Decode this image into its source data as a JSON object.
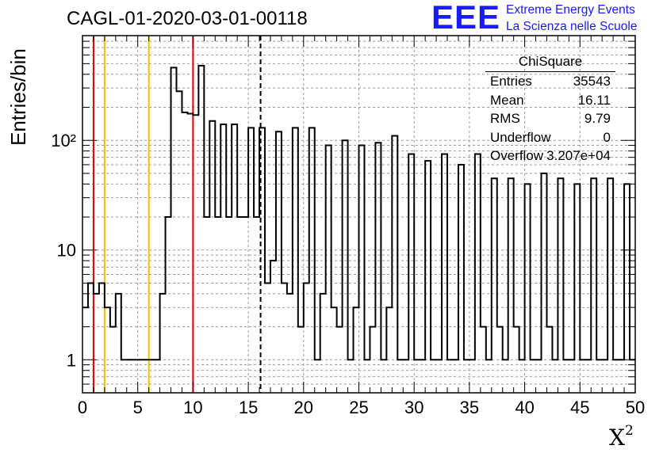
{
  "header": {
    "title": "CAGL-01-2020-03-01-00118",
    "logo_text": "EEE",
    "logo_line1": "Extreme Energy Events",
    "logo_line2": "La Scienza nelle Scuole"
  },
  "stats_box": {
    "title": "ChiSquare",
    "rows": [
      {
        "key": "Entries",
        "value": "35543"
      },
      {
        "key": "Mean",
        "value": "16.11"
      },
      {
        "key": "RMS",
        "value": "9.79"
      },
      {
        "key": "Underflow",
        "value": "0"
      },
      {
        "key": "Overflow",
        "value": "3.207e+04"
      }
    ]
  },
  "colors": {
    "red_line": "#dd0000",
    "yellow_line": "#f0c000",
    "histogram": "#000000",
    "logo": "#1a1aff"
  },
  "chart_data": {
    "type": "bar",
    "histogram": "step",
    "ylabel": "Entries/bin",
    "xlabel": "X²",
    "xlim": [
      0,
      50
    ],
    "ylim": [
      0.5,
      900
    ],
    "yscale": "log",
    "grid": true,
    "bin_width": 0.5,
    "x_ticks": [
      "0",
      "5",
      "10",
      "15",
      "20",
      "25",
      "30",
      "35",
      "40",
      "45",
      "50"
    ],
    "y_ticks": [
      {
        "value": 1,
        "label": "1"
      },
      {
        "value": 10,
        "label": "10"
      },
      {
        "value": 100,
        "label": "10²"
      }
    ],
    "vertical_lines": [
      {
        "x": 1,
        "color": "red",
        "style": "solid"
      },
      {
        "x": 2,
        "color": "yellow",
        "style": "solid"
      },
      {
        "x": 6,
        "color": "yellow",
        "style": "solid"
      },
      {
        "x": 10,
        "color": "red",
        "style": "solid"
      },
      {
        "x": 16.11,
        "color": "black",
        "style": "dashed"
      }
    ],
    "values": [
      3,
      5,
      4,
      5,
      3,
      2,
      4,
      1,
      1,
      1,
      1,
      1,
      1,
      1,
      4,
      20,
      460,
      280,
      180,
      175,
      170,
      480,
      20,
      150,
      20,
      140,
      20,
      140,
      20,
      20,
      130,
      20,
      130,
      5,
      8,
      120,
      5,
      4,
      130,
      2,
      5,
      130,
      1,
      4,
      90,
      3,
      2,
      100,
      1,
      3,
      90,
      1,
      2,
      95,
      1,
      3,
      110,
      1,
      1,
      75,
      1,
      1,
      65,
      1,
      1,
      75,
      1,
      1,
      60,
      1,
      1,
      75,
      2,
      1,
      45,
      2,
      1,
      45,
      2,
      1,
      40,
      1,
      1,
      50,
      2,
      1,
      45,
      1,
      1,
      40,
      1,
      1,
      45,
      1,
      1,
      45,
      1,
      1,
      40,
      1
    ]
  }
}
